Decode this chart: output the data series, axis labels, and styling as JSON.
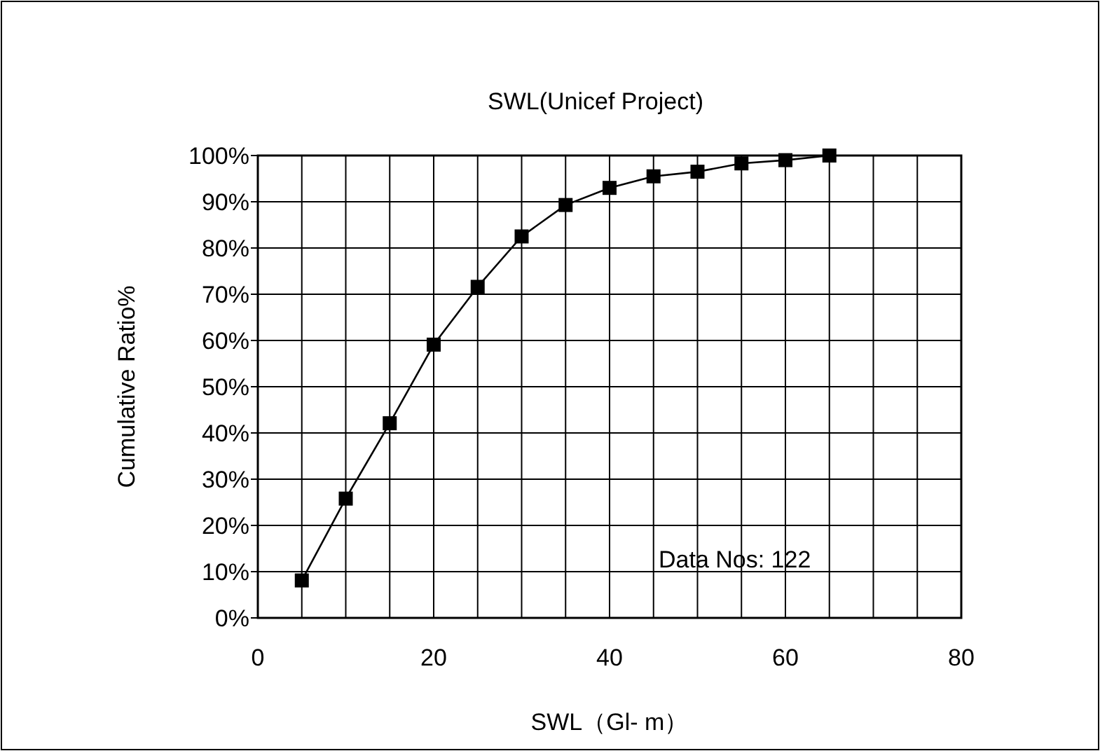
{
  "chart_data": {
    "type": "line",
    "title": "SWL(Unicef Project)",
    "xlabel": "SWL（Gl- m）",
    "ylabel": "Cumulative Ratio%",
    "x": [
      5,
      10,
      15,
      20,
      25,
      30,
      35,
      40,
      45,
      50,
      55,
      60,
      65
    ],
    "series": [
      {
        "color": "#000000",
        "values": [
          8.1,
          25.8,
          42.1,
          59.1,
          71.6,
          82.5,
          89.3,
          93.0,
          95.5,
          96.5,
          98.3,
          99.0,
          100
        ]
      }
    ],
    "xlim": [
      0,
      80
    ],
    "xticks": [
      0,
      {
        "value": 5,
        "label": null
      },
      {
        "value": 10,
        "label": null
      },
      {
        "value": 15,
        "label": null
      },
      20,
      {
        "value": 25,
        "label": null
      },
      {
        "value": 30,
        "label": null
      },
      {
        "value": 35,
        "label": null
      },
      40,
      {
        "value": 45,
        "label": null
      },
      {
        "value": 50,
        "label": null
      },
      {
        "value": 55,
        "label": null
      },
      60,
      {
        "value": 65,
        "label": null
      },
      {
        "value": 70,
        "label": null
      },
      {
        "value": 75,
        "label": null
      },
      80
    ],
    "ylim": [
      0,
      100
    ],
    "yticks": [
      {
        "value": 0,
        "label": "0%"
      },
      {
        "value": 10,
        "label": "10%"
      },
      {
        "value": 20,
        "label": "20%"
      },
      {
        "value": 30,
        "label": "30%"
      },
      {
        "value": 40,
        "label": "40%"
      },
      {
        "value": 50,
        "label": "50%"
      },
      {
        "value": 60,
        "label": "60%"
      },
      {
        "value": 70,
        "label": "70%"
      },
      {
        "value": 80,
        "label": "80%"
      },
      {
        "value": 90,
        "label": "90%"
      },
      {
        "value": 100,
        "label": "100%"
      }
    ],
    "grid": true,
    "marker": "square",
    "line_style": "solid",
    "annotations": [
      "Data Nos: 122"
    ]
  }
}
